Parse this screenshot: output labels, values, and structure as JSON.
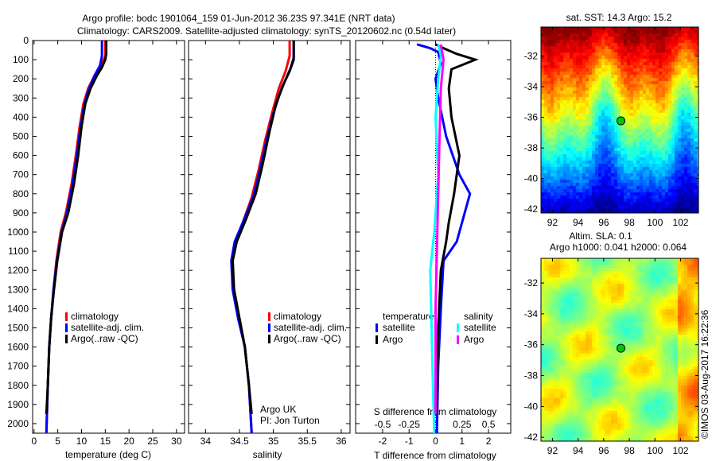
{
  "title_line1": "Argo profile: bodc 1901064_159 01-Jun-2012 36.23S 97.341E (NRT data)",
  "title_line2": "Climatology: CARS2009. Satellite-adjusted climatology: synTS_20120602.nc (0.54d later)",
  "colors": {
    "climatology": "#ff0000",
    "satellite": "#0000ff",
    "argo": "#000000",
    "sal_satellite": "#00ffff",
    "sal_argo": "#ff00ff"
  },
  "chart_data": [
    {
      "type": "line",
      "id": "temperature",
      "xlabel": "temperature (deg C)",
      "ylabel": "",
      "xlim": [
        -0.3,
        31.7
      ],
      "ylim": [
        2050,
        0
      ],
      "xticks": [
        0,
        5,
        10,
        15,
        20,
        25,
        30
      ],
      "yticks": [
        0,
        100,
        200,
        300,
        400,
        500,
        600,
        700,
        800,
        900,
        1000,
        1100,
        1200,
        1300,
        1400,
        1500,
        1600,
        1700,
        1800,
        1900,
        2000
      ],
      "legend": [
        "climatology",
        "satellite-adj. clim.",
        "Argo(..raw -QC)"
      ],
      "series": [
        {
          "name": "climatology",
          "color": "#ff0000",
          "points": [
            [
              15.0,
              0
            ],
            [
              15.0,
              80
            ],
            [
              14.2,
              130
            ],
            [
              12.8,
              180
            ],
            [
              11.4,
              250
            ],
            [
              10.4,
              330
            ],
            [
              9.6,
              450
            ],
            [
              8.8,
              600
            ],
            [
              7.9,
              750
            ],
            [
              6.7,
              900
            ],
            [
              5.6,
              1000
            ],
            [
              4.7,
              1150
            ],
            [
              4.1,
              1300
            ],
            [
              3.6,
              1450
            ],
            [
              3.2,
              1600
            ],
            [
              2.9,
              1800
            ],
            [
              2.6,
              2050
            ]
          ]
        },
        {
          "name": "satellite-adj. clim.",
          "color": "#0000ff",
          "points": [
            [
              14.3,
              0
            ],
            [
              14.3,
              80
            ],
            [
              13.9,
              130
            ],
            [
              12.8,
              180
            ],
            [
              11.6,
              250
            ],
            [
              10.6,
              330
            ],
            [
              9.8,
              450
            ],
            [
              9.0,
              600
            ],
            [
              8.1,
              750
            ],
            [
              6.9,
              900
            ],
            [
              5.8,
              1000
            ],
            [
              4.8,
              1150
            ],
            [
              4.1,
              1300
            ],
            [
              3.6,
              1450
            ],
            [
              3.2,
              1600
            ],
            [
              2.9,
              1800
            ],
            [
              2.6,
              2050
            ]
          ]
        },
        {
          "name": "Argo(..raw -QC)",
          "color": "#000000",
          "points": [
            [
              15.2,
              0
            ],
            [
              15.2,
              70
            ],
            [
              15.0,
              100
            ],
            [
              14.3,
              140
            ],
            [
              13.1,
              190
            ],
            [
              11.9,
              250
            ],
            [
              10.8,
              330
            ],
            [
              10.0,
              450
            ],
            [
              9.3,
              600
            ],
            [
              8.4,
              750
            ],
            [
              7.2,
              900
            ],
            [
              5.9,
              1000
            ],
            [
              4.9,
              1150
            ],
            [
              4.2,
              1300
            ],
            [
              3.6,
              1450
            ],
            [
              3.2,
              1600
            ],
            [
              2.9,
              1800
            ],
            [
              2.6,
              1950
            ]
          ]
        }
      ]
    },
    {
      "type": "line",
      "id": "salinity",
      "xlabel": "salinity",
      "xlim": [
        33.75,
        36.13
      ],
      "ylim": [
        2050,
        0
      ],
      "xticks": [
        34,
        34.5,
        35,
        35.5,
        36
      ],
      "legend": [
        "climatology",
        "satellite-adj. clim.",
        "Argo(..raw -QC)"
      ],
      "annotation": [
        "Argo UK",
        "PI: Jon Turton"
      ],
      "series": [
        {
          "name": "climatology",
          "color": "#ff0000",
          "points": [
            [
              35.24,
              0
            ],
            [
              35.24,
              80
            ],
            [
              35.18,
              160
            ],
            [
              35.08,
              250
            ],
            [
              34.98,
              380
            ],
            [
              34.88,
              520
            ],
            [
              34.78,
              680
            ],
            [
              34.68,
              820
            ],
            [
              34.55,
              950
            ],
            [
              34.45,
              1050
            ],
            [
              34.4,
              1150
            ],
            [
              34.42,
              1300
            ],
            [
              34.5,
              1450
            ],
            [
              34.58,
              1600
            ],
            [
              34.64,
              1800
            ],
            [
              34.68,
              2050
            ]
          ]
        },
        {
          "name": "satellite-adj. clim.",
          "color": "#0000ff",
          "points": [
            [
              35.3,
              0
            ],
            [
              35.3,
              90
            ],
            [
              35.24,
              160
            ],
            [
              35.12,
              250
            ],
            [
              35.0,
              380
            ],
            [
              34.9,
              520
            ],
            [
              34.8,
              680
            ],
            [
              34.7,
              820
            ],
            [
              34.55,
              950
            ],
            [
              34.43,
              1050
            ],
            [
              34.38,
              1150
            ],
            [
              34.4,
              1300
            ],
            [
              34.48,
              1450
            ],
            [
              34.58,
              1600
            ],
            [
              34.64,
              1800
            ],
            [
              34.68,
              2050
            ]
          ]
        },
        {
          "name": "Argo(..raw -QC)",
          "color": "#000000",
          "points": [
            [
              35.3,
              0
            ],
            [
              35.3,
              100
            ],
            [
              35.26,
              140
            ],
            [
              35.16,
              220
            ],
            [
              35.04,
              330
            ],
            [
              34.94,
              480
            ],
            [
              34.84,
              650
            ],
            [
              34.74,
              800
            ],
            [
              34.6,
              930
            ],
            [
              34.46,
              1050
            ],
            [
              34.4,
              1150
            ],
            [
              34.42,
              1300
            ],
            [
              34.5,
              1450
            ],
            [
              34.58,
              1600
            ],
            [
              34.64,
              1800
            ],
            [
              34.68,
              1950
            ]
          ]
        }
      ]
    },
    {
      "type": "line",
      "id": "difference",
      "xlabel": "T difference from climatology",
      "xlim": [
        -3.02,
        2.84
      ],
      "ylim": [
        2050,
        0
      ],
      "xticks": [
        -2,
        -1,
        0,
        1,
        2
      ],
      "top_axis_label": "S difference from climatology",
      "top_xticks": [
        "-0.5",
        "-0.25",
        "0",
        "0.25",
        "0.5"
      ],
      "legend_headers": [
        "temperature",
        "salinity"
      ],
      "legend": [
        "satellite",
        "Argo",
        "satellite",
        "Argo"
      ],
      "series": [
        {
          "name": "temperature satellite",
          "color": "#0000ff",
          "points": [
            [
              -0.7,
              20
            ],
            [
              -0.2,
              40
            ],
            [
              0.1,
              60
            ],
            [
              0.2,
              120
            ],
            [
              0.0,
              200
            ],
            [
              0.1,
              300
            ],
            [
              0.4,
              500
            ],
            [
              0.9,
              700
            ],
            [
              1.3,
              800
            ],
            [
              1.0,
              950
            ],
            [
              0.8,
              1050
            ],
            [
              0.3,
              1150
            ],
            [
              0.2,
              1400
            ],
            [
              0.1,
              1700
            ],
            [
              0.05,
              2050
            ]
          ]
        },
        {
          "name": "temperature Argo",
          "color": "#000000",
          "points": [
            [
              0.0,
              20
            ],
            [
              0.3,
              40
            ],
            [
              0.8,
              70
            ],
            [
              1.5,
              100
            ],
            [
              0.6,
              150
            ],
            [
              0.5,
              250
            ],
            [
              0.6,
              400
            ],
            [
              0.9,
              600
            ],
            [
              0.7,
              800
            ],
            [
              0.5,
              950
            ],
            [
              0.4,
              1050
            ],
            [
              0.2,
              1200
            ],
            [
              0.1,
              1500
            ],
            [
              0.05,
              1950
            ]
          ]
        },
        {
          "name": "salinity satellite",
          "color": "#00ffff",
          "points": [
            [
              0.1,
              20
            ],
            [
              0.2,
              80
            ],
            [
              0.1,
              200
            ],
            [
              0.0,
              400
            ],
            [
              0.1,
              700
            ],
            [
              -0.05,
              1000
            ],
            [
              -0.2,
              1200
            ],
            [
              -0.15,
              1500
            ],
            [
              -0.1,
              1800
            ],
            [
              -0.05,
              2050
            ]
          ]
        },
        {
          "name": "salinity Argo",
          "color": "#ff00ff",
          "points": [
            [
              0.2,
              20
            ],
            [
              0.3,
              100
            ],
            [
              0.2,
              250
            ],
            [
              0.15,
              500
            ],
            [
              0.1,
              800
            ],
            [
              0.05,
              1100
            ],
            [
              0.0,
              1400
            ],
            [
              0.0,
              1700
            ],
            [
              0.0,
              1950
            ]
          ]
        }
      ]
    },
    {
      "type": "heatmap",
      "id": "sst_map",
      "title": "sat. SST: 14.3 Argo: 15.2",
      "xlim": [
        91.1,
        103.4
      ],
      "ylim": [
        -42.25,
        -30.1
      ],
      "xticks": [
        92,
        94,
        96,
        98,
        100,
        102
      ],
      "yticks": [
        -32,
        -34,
        -36,
        -38,
        -40,
        -42
      ],
      "marker": [
        97.341,
        -36.23
      ]
    },
    {
      "type": "heatmap",
      "id": "sla_map",
      "title_line1": "Altim. SLA: 0.1",
      "title_line2": "Argo h1000: 0.041 h2000: 0.064",
      "xlim": [
        91.1,
        103.4
      ],
      "ylim": [
        -42.25,
        -30.4
      ],
      "xticks": [
        92,
        94,
        96,
        98,
        100,
        102
      ],
      "yticks": [
        -32,
        -34,
        -36,
        -38,
        -40,
        -42
      ],
      "marker": [
        97.341,
        -36.23
      ]
    }
  ],
  "credit": "©IMOS 03-Aug-2017 16:22:36"
}
